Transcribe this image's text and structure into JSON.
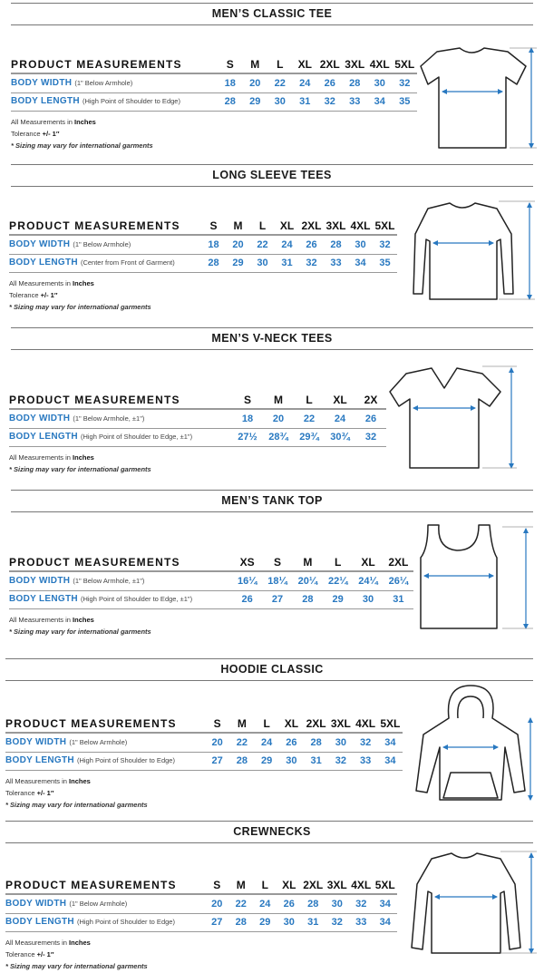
{
  "common": {
    "header_label": "PRODUCT MEASUREMENTS",
    "width_label": "BODY WIDTH",
    "length_label": "BODY LENGTH",
    "units_prefix": "All Measurements in",
    "units": "Inches",
    "tolerance_prefix": "Tolerance",
    "tolerance": "+/- 1″",
    "disclaimer": "* Sizing may vary for international garments",
    "arrow_color": "#2878c0"
  },
  "sections": [
    {
      "title": "MEN’S CLASSIC TEE",
      "garment": "tshirt-icon",
      "width_note": "(1\" Below Armhole)",
      "length_note": "(High Point of Shoulder to Edge)",
      "sizes": [
        "S",
        "M",
        "L",
        "XL",
        "2XL",
        "3XL",
        "4XL",
        "5XL"
      ],
      "width": [
        "18",
        "20",
        "22",
        "24",
        "26",
        "28",
        "30",
        "32"
      ],
      "length": [
        "28",
        "29",
        "30",
        "31",
        "32",
        "33",
        "34",
        "35"
      ],
      "tolerance": true
    },
    {
      "title": "LONG SLEEVE TEES",
      "garment": "long-sleeve-icon",
      "width_note": "(1\" Below Armhole)",
      "length_note": "(Center from Front of Garment)",
      "sizes": [
        "S",
        "M",
        "L",
        "XL",
        "2XL",
        "3XL",
        "4XL",
        "5XL"
      ],
      "width": [
        "18",
        "20",
        "22",
        "24",
        "26",
        "28",
        "30",
        "32"
      ],
      "length": [
        "28",
        "29",
        "30",
        "31",
        "32",
        "33",
        "34",
        "35"
      ],
      "tolerance": true
    },
    {
      "title": "MEN’S V-NECK TEES",
      "garment": "vneck-icon",
      "width_note": "(1\" Below Armhole, ±1\")",
      "length_note": "(High Point of Shoulder to Edge, ±1\")",
      "sizes": [
        "S",
        "M",
        "L",
        "XL",
        "2X"
      ],
      "width": [
        "18",
        "20",
        "22",
        "24",
        "26"
      ],
      "length": [
        "27½",
        "28¾",
        "29¾",
        "30¾",
        "32"
      ],
      "tolerance": false
    },
    {
      "title": "MEN’S TANK TOP",
      "garment": "tank-top-icon",
      "width_note": "(1\" Below Armhole, ±1\")",
      "length_note": "(High Point of Shoulder to Edge, ±1\")",
      "sizes": [
        "XS",
        "S",
        "M",
        "L",
        "XL",
        "2XL"
      ],
      "width": [
        "16¼",
        "18¼",
        "20¼",
        "22¼",
        "24¼",
        "26¼"
      ],
      "length": [
        "26",
        "27",
        "28",
        "29",
        "30",
        "31"
      ],
      "tolerance": false
    },
    {
      "title": "HOODIE CLASSIC",
      "garment": "hoodie-icon",
      "width_note": "(1\" Below Armhole)",
      "length_note": "(High Point of Shoulder to Edge)",
      "sizes": [
        "S",
        "M",
        "L",
        "XL",
        "2XL",
        "3XL",
        "4XL",
        "5XL"
      ],
      "width": [
        "20",
        "22",
        "24",
        "26",
        "28",
        "30",
        "32",
        "34"
      ],
      "length": [
        "27",
        "28",
        "29",
        "30",
        "31",
        "32",
        "33",
        "34"
      ],
      "tolerance": true
    },
    {
      "title": "CREWNECKS",
      "garment": "crewneck-icon",
      "width_note": "(1\" Below Armhole)",
      "length_note": "(High Point of Shoulder to Edge)",
      "sizes": [
        "S",
        "M",
        "L",
        "XL",
        "2XL",
        "3XL",
        "4XL",
        "5XL"
      ],
      "width": [
        "20",
        "22",
        "24",
        "26",
        "28",
        "30",
        "32",
        "34"
      ],
      "length": [
        "27",
        "28",
        "29",
        "30",
        "31",
        "32",
        "33",
        "34"
      ],
      "tolerance": true
    }
  ]
}
